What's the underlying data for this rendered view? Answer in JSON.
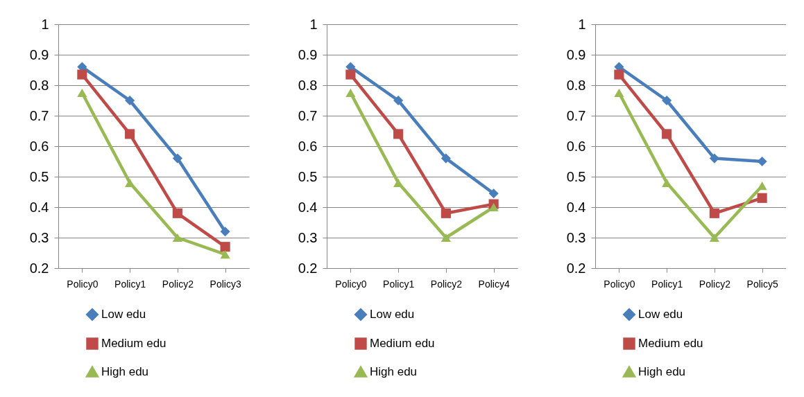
{
  "chart_data": [
    {
      "type": "line",
      "categories": [
        "Policy0",
        "Policy1",
        "Policy2",
        "Policy3"
      ],
      "ylim": [
        0.2,
        1
      ],
      "yticks": [
        0.2,
        0.3,
        0.4,
        0.5,
        0.6,
        0.7,
        0.8,
        0.9,
        1
      ],
      "grid": "y",
      "legend": "bottom",
      "line_style": "solid",
      "series": [
        {
          "name": "Low edu",
          "color": "#4a7ebb",
          "marker": "diamond",
          "values": [
            0.86,
            0.75,
            0.56,
            0.32
          ]
        },
        {
          "name": "Medium edu",
          "color": "#be4b48",
          "marker": "square",
          "values": [
            0.835,
            0.64,
            0.38,
            0.27
          ]
        },
        {
          "name": "High edu",
          "color": "#98b954",
          "marker": "triangle",
          "values": [
            0.775,
            0.48,
            0.3,
            0.245
          ]
        }
      ]
    },
    {
      "type": "line",
      "categories": [
        "Policy0",
        "Policy1",
        "Policy2",
        "Policy4"
      ],
      "ylim": [
        0.2,
        1
      ],
      "yticks": [
        0.2,
        0.3,
        0.4,
        0.5,
        0.6,
        0.7,
        0.8,
        0.9,
        1
      ],
      "grid": "y",
      "legend": "bottom",
      "line_style": "solid",
      "series": [
        {
          "name": "Low edu",
          "color": "#4a7ebb",
          "marker": "diamond",
          "values": [
            0.86,
            0.75,
            0.56,
            0.445
          ]
        },
        {
          "name": "Medium edu",
          "color": "#be4b48",
          "marker": "square",
          "values": [
            0.835,
            0.64,
            0.38,
            0.41
          ]
        },
        {
          "name": "High edu",
          "color": "#98b954",
          "marker": "triangle",
          "values": [
            0.775,
            0.48,
            0.3,
            0.4
          ]
        }
      ]
    },
    {
      "type": "line",
      "categories": [
        "Policy0",
        "Policy1",
        "Policy2",
        "Policy5"
      ],
      "ylim": [
        0.2,
        1
      ],
      "yticks": [
        0.2,
        0.3,
        0.4,
        0.5,
        0.6,
        0.7,
        0.8,
        0.9,
        1
      ],
      "grid": "y",
      "legend": "bottom",
      "line_style": "solid",
      "series": [
        {
          "name": "Low edu",
          "color": "#4a7ebb",
          "marker": "diamond",
          "values": [
            0.86,
            0.75,
            0.56,
            0.55
          ]
        },
        {
          "name": "Medium edu",
          "color": "#be4b48",
          "marker": "square",
          "values": [
            0.835,
            0.64,
            0.38,
            0.43
          ]
        },
        {
          "name": "High edu",
          "color": "#98b954",
          "marker": "triangle",
          "values": [
            0.775,
            0.48,
            0.3,
            0.47
          ]
        }
      ]
    }
  ]
}
